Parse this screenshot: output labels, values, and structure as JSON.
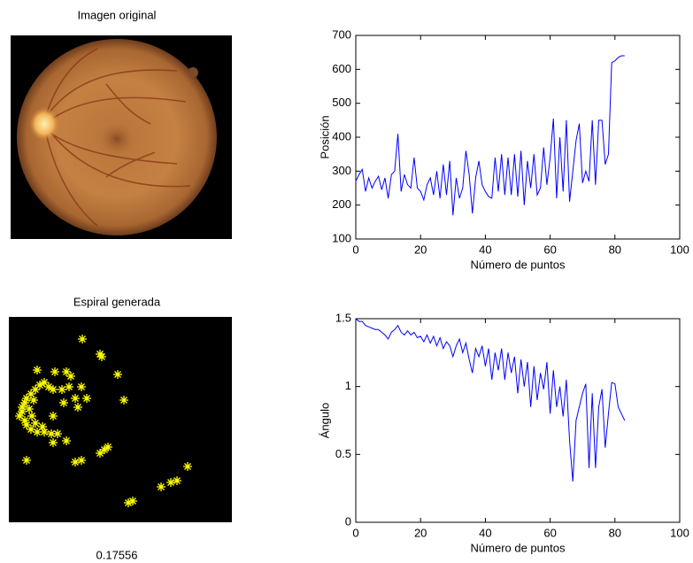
{
  "images": [
    {
      "title": "Imagen original"
    },
    {
      "title": "Espiral generada",
      "caption": "0.17556"
    }
  ],
  "chart_data": [
    {
      "type": "line",
      "xlabel": "Número de puntos",
      "ylabel": "Posición",
      "xlim": [
        0,
        100
      ],
      "ylim": [
        100,
        700
      ],
      "xticks": [
        0,
        20,
        40,
        60,
        80,
        100
      ],
      "yticks": [
        100,
        200,
        300,
        400,
        500,
        600,
        700
      ],
      "x": [
        0,
        1,
        2,
        3,
        4,
        5,
        6,
        7,
        8,
        9,
        10,
        11,
        12,
        13,
        14,
        15,
        16,
        17,
        18,
        19,
        20,
        21,
        22,
        23,
        24,
        25,
        26,
        27,
        28,
        29,
        30,
        31,
        32,
        33,
        34,
        35,
        36,
        37,
        38,
        39,
        40,
        41,
        42,
        43,
        44,
        45,
        46,
        47,
        48,
        49,
        50,
        51,
        52,
        53,
        54,
        55,
        56,
        57,
        58,
        59,
        60,
        61,
        62,
        63,
        64,
        65,
        66,
        67,
        68,
        69,
        70,
        71,
        72,
        73,
        74,
        75,
        76,
        77,
        78,
        79,
        80,
        81,
        82,
        83
      ],
      "series": [
        {
          "color": "#0000ff",
          "values": [
            270,
            290,
            305,
            240,
            280,
            250,
            270,
            285,
            245,
            280,
            220,
            290,
            300,
            410,
            240,
            290,
            260,
            250,
            340,
            250,
            240,
            215,
            260,
            280,
            230,
            300,
            220,
            320,
            230,
            330,
            170,
            280,
            220,
            250,
            360,
            290,
            175,
            280,
            330,
            260,
            240,
            225,
            220,
            340,
            240,
            350,
            230,
            340,
            230,
            350,
            225,
            360,
            200,
            330,
            250,
            350,
            230,
            250,
            370,
            260,
            340,
            455,
            220,
            400,
            240,
            450,
            210,
            300,
            390,
            440,
            265,
            300,
            270,
            450,
            260,
            450,
            450,
            320,
            350,
            620,
            625,
            635,
            640,
            640
          ]
        }
      ]
    },
    {
      "type": "line",
      "xlabel": "Número de puntos",
      "ylabel": "Ángulo",
      "xlim": [
        0,
        100
      ],
      "ylim": [
        0,
        1.5
      ],
      "xticks": [
        0,
        20,
        40,
        60,
        80,
        100
      ],
      "yticks": [
        0,
        0.5,
        1,
        1.5
      ],
      "x": [
        0,
        1,
        2,
        3,
        4,
        5,
        6,
        7,
        8,
        9,
        10,
        11,
        12,
        13,
        14,
        15,
        16,
        17,
        18,
        19,
        20,
        21,
        22,
        23,
        24,
        25,
        26,
        27,
        28,
        29,
        30,
        31,
        32,
        33,
        34,
        35,
        36,
        37,
        38,
        39,
        40,
        41,
        42,
        43,
        44,
        45,
        46,
        47,
        48,
        49,
        50,
        51,
        52,
        53,
        54,
        55,
        56,
        57,
        58,
        59,
        60,
        61,
        62,
        63,
        64,
        65,
        66,
        67,
        68,
        69,
        70,
        71,
        72,
        73,
        74,
        75,
        76,
        77,
        78,
        79,
        80,
        81,
        82,
        83
      ],
      "series": [
        {
          "color": "#0000ff",
          "values": [
            1.5,
            1.48,
            1.48,
            1.45,
            1.44,
            1.43,
            1.42,
            1.42,
            1.4,
            1.38,
            1.35,
            1.4,
            1.42,
            1.45,
            1.4,
            1.38,
            1.41,
            1.38,
            1.4,
            1.36,
            1.37,
            1.33,
            1.38,
            1.32,
            1.37,
            1.3,
            1.36,
            1.28,
            1.33,
            1.3,
            1.22,
            1.3,
            1.35,
            1.25,
            1.32,
            1.2,
            1.1,
            1.28,
            1.22,
            1.3,
            1.15,
            1.28,
            1.05,
            1.25,
            1.12,
            1.28,
            1.05,
            1.25,
            1.1,
            1.22,
            0.95,
            1.2,
            1.0,
            1.18,
            0.85,
            1.15,
            0.9,
            1.1,
            0.98,
            1.18,
            0.8,
            1.12,
            0.85,
            1.0,
            0.78,
            1.05,
            0.6,
            0.3,
            0.75,
            0.85,
            0.95,
            1.02,
            0.4,
            0.95,
            0.4,
            0.85,
            0.98,
            0.55,
            0.8,
            1.03,
            1.02,
            0.85,
            0.8,
            0.75
          ]
        }
      ]
    }
  ]
}
